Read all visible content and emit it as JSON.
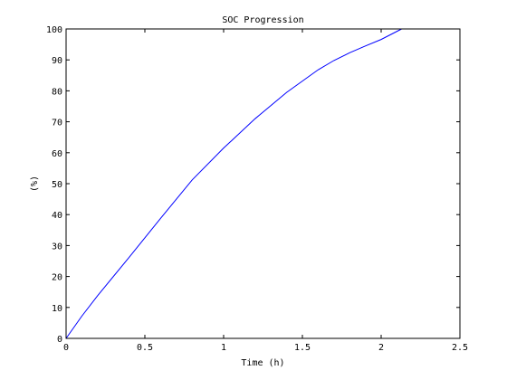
{
  "chart_data": {
    "type": "line",
    "title": "SOC Progression",
    "xlabel": "Time (h)",
    "ylabel": "(%)",
    "xlim": [
      0,
      2.5
    ],
    "ylim": [
      0,
      100
    ],
    "x_ticks": [
      0,
      0.5,
      1,
      1.5,
      2,
      2.5
    ],
    "x_tick_labels": [
      "0",
      "0.5",
      "1",
      "1.5",
      "2",
      "2.5"
    ],
    "y_ticks": [
      0,
      10,
      20,
      30,
      40,
      50,
      60,
      70,
      80,
      90,
      100
    ],
    "y_tick_labels": [
      "0",
      "10",
      "20",
      "30",
      "40",
      "50",
      "60",
      "70",
      "80",
      "90",
      "100"
    ],
    "grid": false,
    "series": [
      {
        "color": "#0000ff",
        "x": [
          0,
          0.1,
          0.2,
          0.4,
          0.6,
          0.8,
          1.0,
          1.2,
          1.4,
          1.6,
          1.7,
          1.8,
          1.9,
          2.0,
          2.13
        ],
        "y": [
          0,
          7.2,
          13.8,
          26.2,
          38.8,
          51.2,
          61.5,
          71.0,
          79.5,
          86.8,
          89.8,
          92.3,
          94.5,
          96.6,
          100
        ]
      }
    ]
  }
}
